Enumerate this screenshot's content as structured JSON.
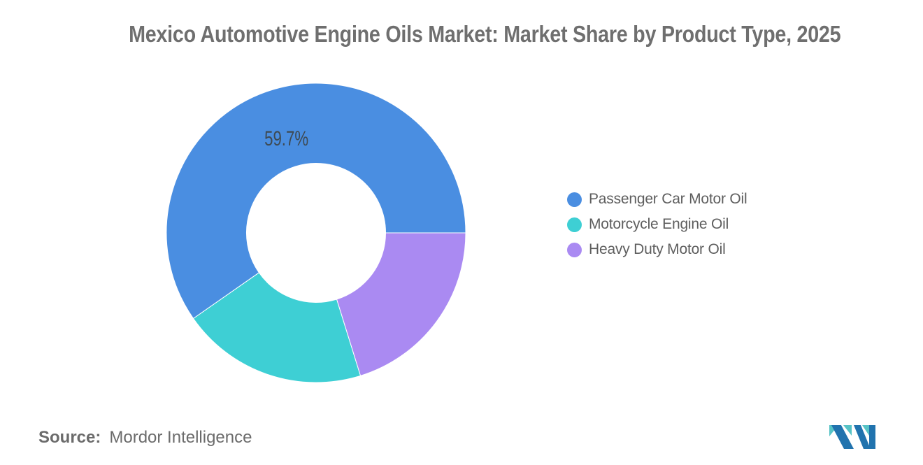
{
  "title": "Mexico Automotive Engine Oils Market: Market Share by Product Type, 2025",
  "source": {
    "label": "Source:",
    "value": "Mordor Intelligence"
  },
  "logo": {
    "name": "mordor-intelligence-logo",
    "teal": "#57C3C6",
    "blue": "#2173AE"
  },
  "chart_data": {
    "type": "pie",
    "donut": true,
    "title": "Mexico Automotive Engine Oils Market: Market Share by Product Type, 2025",
    "series": [
      {
        "name": "Passenger Car Motor Oil",
        "value": 59.7,
        "color": "#4A8EE1",
        "label": "59.7%"
      },
      {
        "name": "Motorcycle Engine Oil",
        "value": 20.1,
        "color": "#3ECFD4",
        "label": ""
      },
      {
        "name": "Heavy Duty Motor Oil",
        "value": 20.2,
        "color": "#AA8AF2",
        "label": ""
      }
    ],
    "label_color": "#3E4A53",
    "slice_border_color": "#FFFFFF",
    "inner_radius_ratio": 0.465,
    "label_radius_ratio": 0.66,
    "start_angle_deg": 0,
    "direction": "counterclockwise",
    "legend_position": "right",
    "legend_marker": "circle"
  }
}
